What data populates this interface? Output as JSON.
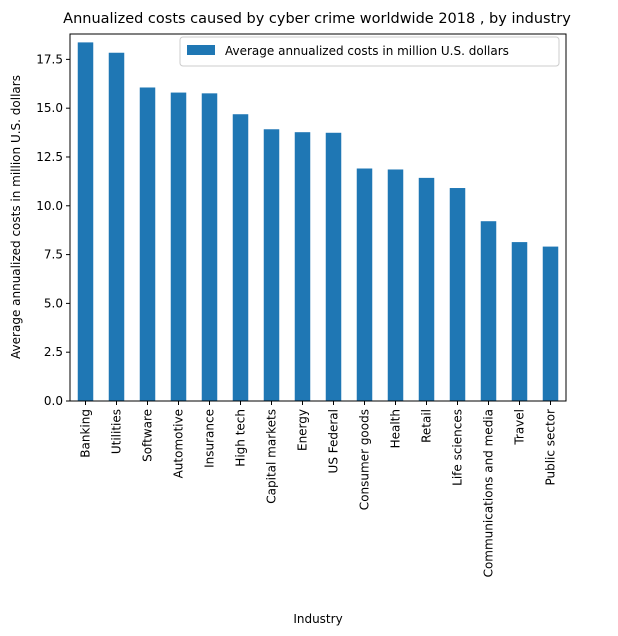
{
  "chart_data": {
    "type": "bar",
    "title": "Annualized costs caused by cyber crime worldwide 2018 , by industry",
    "xlabel": "Industry",
    "ylabel": "Average annualized costs in million U.S. dollars",
    "ylim": [
      0,
      18.8
    ],
    "yticks": [
      "0.0",
      "2.5",
      "5.0",
      "7.5",
      "10.0",
      "12.5",
      "15.0",
      "17.5"
    ],
    "grid": false,
    "legend_position": "top-right",
    "categories": [
      "Banking",
      "Utilities",
      "Software",
      "Automotive",
      "Insurance",
      "High tech",
      "Capital markets",
      "Energy",
      "US Federal",
      "Consumer goods",
      "Health",
      "Retail",
      "Life sciences",
      "Communications and media",
      "Travel",
      "Public sector"
    ],
    "series": [
      {
        "name": "Average annualized costs in million U.S. dollars",
        "color": "#1f77b4",
        "values": [
          18.37,
          17.84,
          16.06,
          15.8,
          15.76,
          14.69,
          13.92,
          13.77,
          13.74,
          11.91,
          11.86,
          11.43,
          10.91,
          9.21,
          8.14,
          7.91
        ]
      }
    ]
  }
}
